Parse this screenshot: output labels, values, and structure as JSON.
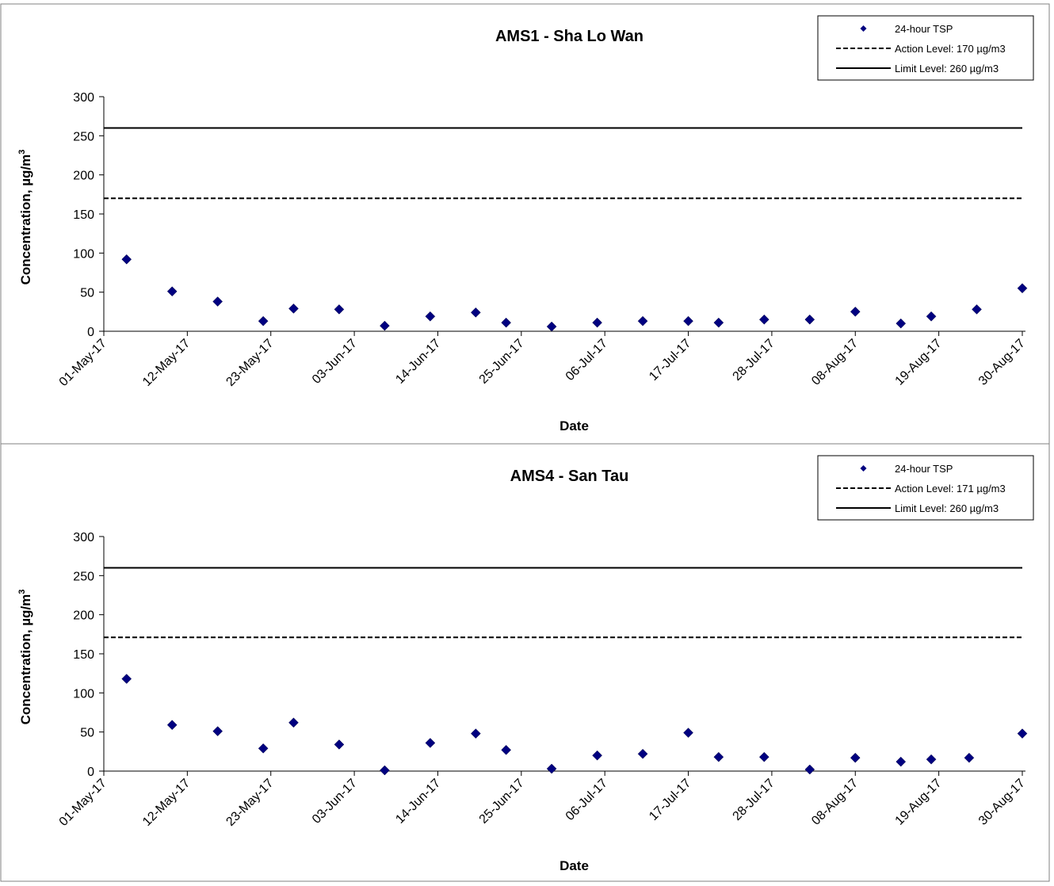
{
  "chart_data": [
    {
      "type": "scatter",
      "title": "AMS1 - Sha Lo Wan",
      "xlabel": "Date",
      "ylabel": "Concentration, µg/m",
      "ylabel_sup": "3",
      "ylim": [
        0,
        300
      ],
      "yticks": [
        0,
        50,
        100,
        150,
        200,
        250,
        300
      ],
      "xlim": [
        "2017-05-01",
        "2017-08-30"
      ],
      "xticks": [
        "01-May-17",
        "12-May-17",
        "23-May-17",
        "03-Jun-17",
        "14-Jun-17",
        "25-Jun-17",
        "06-Jul-17",
        "17-Jul-17",
        "28-Jul-17",
        "08-Aug-17",
        "19-Aug-17",
        "30-Aug-17"
      ],
      "legend_position": "top-right",
      "series": [
        {
          "name": "24-hour TSP",
          "marker": "diamond",
          "color": "#000080",
          "points": [
            {
              "x": "2017-05-04",
              "y": 92
            },
            {
              "x": "2017-05-10",
              "y": 51
            },
            {
              "x": "2017-05-16",
              "y": 38
            },
            {
              "x": "2017-05-22",
              "y": 13
            },
            {
              "x": "2017-05-26",
              "y": 29
            },
            {
              "x": "2017-06-01",
              "y": 28
            },
            {
              "x": "2017-06-07",
              "y": 7
            },
            {
              "x": "2017-06-13",
              "y": 19
            },
            {
              "x": "2017-06-19",
              "y": 24
            },
            {
              "x": "2017-06-23",
              "y": 11
            },
            {
              "x": "2017-06-29",
              "y": 6
            },
            {
              "x": "2017-07-05",
              "y": 11
            },
            {
              "x": "2017-07-11",
              "y": 13
            },
            {
              "x": "2017-07-17",
              "y": 13
            },
            {
              "x": "2017-07-21",
              "y": 11
            },
            {
              "x": "2017-07-27",
              "y": 15
            },
            {
              "x": "2017-08-02",
              "y": 15
            },
            {
              "x": "2017-08-08",
              "y": 25
            },
            {
              "x": "2017-08-14",
              "y": 10
            },
            {
              "x": "2017-08-18",
              "y": 19
            },
            {
              "x": "2017-08-24",
              "y": 28
            },
            {
              "x": "2017-08-30",
              "y": 55
            }
          ]
        },
        {
          "name": "Action Level: 170 µg/m3",
          "style": "dashed",
          "color": "#000000",
          "y": 170
        },
        {
          "name": "Limit Level: 260 µg/m3",
          "style": "solid",
          "color": "#000000",
          "y": 260
        }
      ]
    },
    {
      "type": "scatter",
      "title": "AMS4 - San Tau",
      "xlabel": "Date",
      "ylabel": "Concentration, µg/m",
      "ylabel_sup": "3",
      "ylim": [
        0,
        300
      ],
      "yticks": [
        0,
        50,
        100,
        150,
        200,
        250,
        300
      ],
      "xlim": [
        "2017-05-01",
        "2017-08-30"
      ],
      "xticks": [
        "01-May-17",
        "12-May-17",
        "23-May-17",
        "03-Jun-17",
        "14-Jun-17",
        "25-Jun-17",
        "06-Jul-17",
        "17-Jul-17",
        "28-Jul-17",
        "08-Aug-17",
        "19-Aug-17",
        "30-Aug-17"
      ],
      "legend_position": "top-right",
      "series": [
        {
          "name": "24-hour TSP",
          "marker": "diamond",
          "color": "#000080",
          "points": [
            {
              "x": "2017-05-04",
              "y": 118
            },
            {
              "x": "2017-05-10",
              "y": 59
            },
            {
              "x": "2017-05-16",
              "y": 51
            },
            {
              "x": "2017-05-22",
              "y": 29
            },
            {
              "x": "2017-05-26",
              "y": 62
            },
            {
              "x": "2017-06-01",
              "y": 34
            },
            {
              "x": "2017-06-07",
              "y": 1
            },
            {
              "x": "2017-06-13",
              "y": 36
            },
            {
              "x": "2017-06-19",
              "y": 48
            },
            {
              "x": "2017-06-23",
              "y": 27
            },
            {
              "x": "2017-06-29",
              "y": 3
            },
            {
              "x": "2017-07-05",
              "y": 20
            },
            {
              "x": "2017-07-11",
              "y": 22
            },
            {
              "x": "2017-07-17",
              "y": 49
            },
            {
              "x": "2017-07-21",
              "y": 18
            },
            {
              "x": "2017-07-27",
              "y": 18
            },
            {
              "x": "2017-08-02",
              "y": 2
            },
            {
              "x": "2017-08-08",
              "y": 17
            },
            {
              "x": "2017-08-14",
              "y": 12
            },
            {
              "x": "2017-08-18",
              "y": 15
            },
            {
              "x": "2017-08-23",
              "y": 17
            },
            {
              "x": "2017-08-30",
              "y": 48
            }
          ]
        },
        {
          "name": "Action Level: 171 µg/m3",
          "style": "dashed",
          "color": "#000000",
          "y": 171
        },
        {
          "name": "Limit Level: 260 µg/m3",
          "style": "solid",
          "color": "#000000",
          "y": 260
        }
      ]
    }
  ]
}
